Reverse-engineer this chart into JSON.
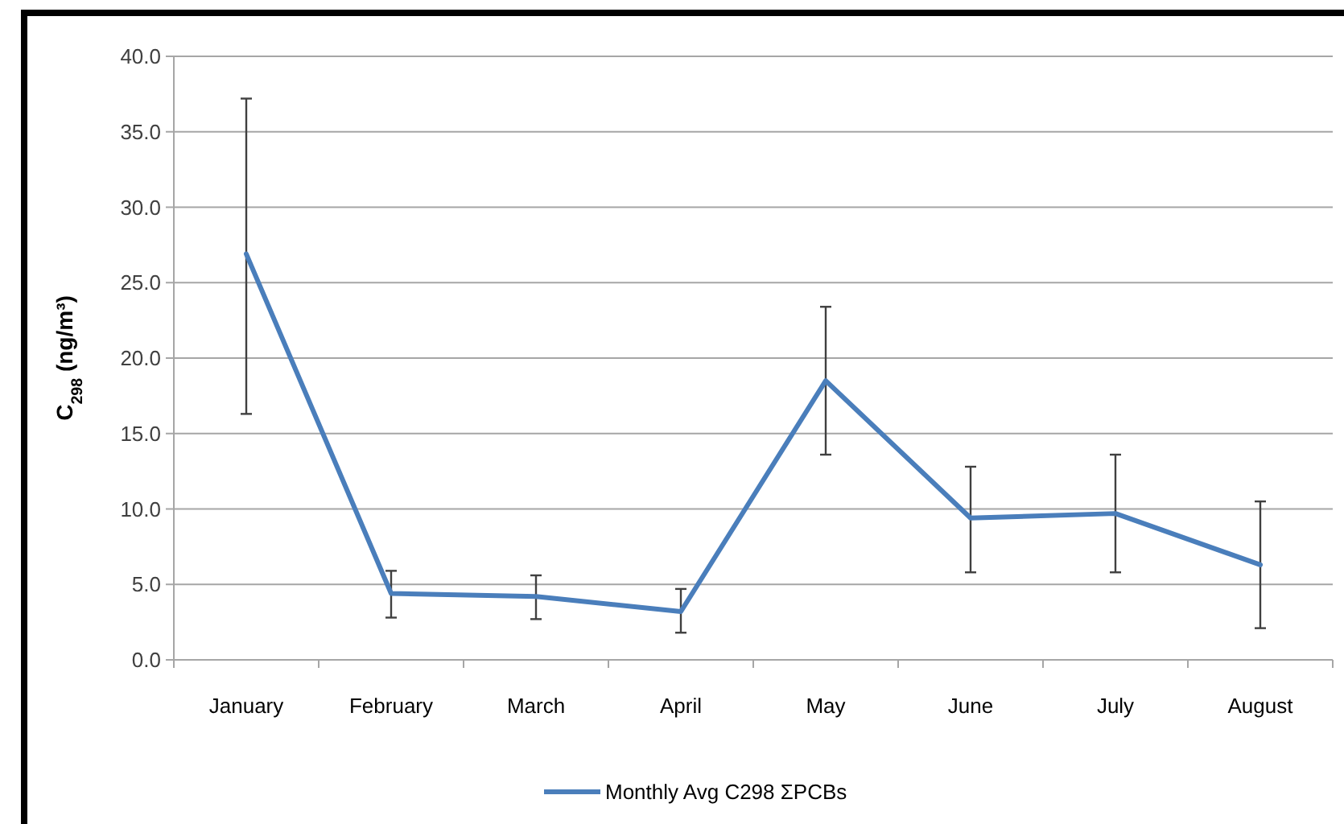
{
  "chart_data": {
    "type": "line",
    "ylabel": "C$_{298}$ (ng/m³)",
    "categories": [
      "January",
      "February",
      "March",
      "April",
      "May",
      "June",
      "July",
      "August"
    ],
    "series": [
      {
        "name": "Monthly Avg C298 ΣPCBs",
        "color": "#4a7ebb",
        "values": [
          26.9,
          4.4,
          4.2,
          3.2,
          18.5,
          9.4,
          9.7,
          6.3
        ],
        "errors": [
          [
            16.3,
            37.2
          ],
          [
            2.8,
            5.9
          ],
          [
            2.7,
            5.6
          ],
          [
            1.8,
            4.7
          ],
          [
            13.6,
            23.4
          ],
          [
            5.8,
            12.8
          ],
          [
            5.8,
            13.6
          ],
          [
            2.1,
            10.5
          ]
        ]
      }
    ],
    "ylim": [
      0,
      40
    ],
    "yticks": [
      {
        "value": 0,
        "label": "0.0"
      },
      {
        "value": 5,
        "label": "5.0"
      },
      {
        "value": 10,
        "label": "10.0"
      },
      {
        "value": 15,
        "label": "15.0"
      },
      {
        "value": 20,
        "label": "20.0"
      },
      {
        "value": 25,
        "label": "25.0"
      },
      {
        "value": 30,
        "label": "30.0"
      },
      {
        "value": 35,
        "label": "35.0"
      },
      {
        "value": 40,
        "label": "40.0"
      }
    ],
    "grid": "y",
    "legend": "bottom",
    "marker": "none",
    "line_style": "solid"
  }
}
